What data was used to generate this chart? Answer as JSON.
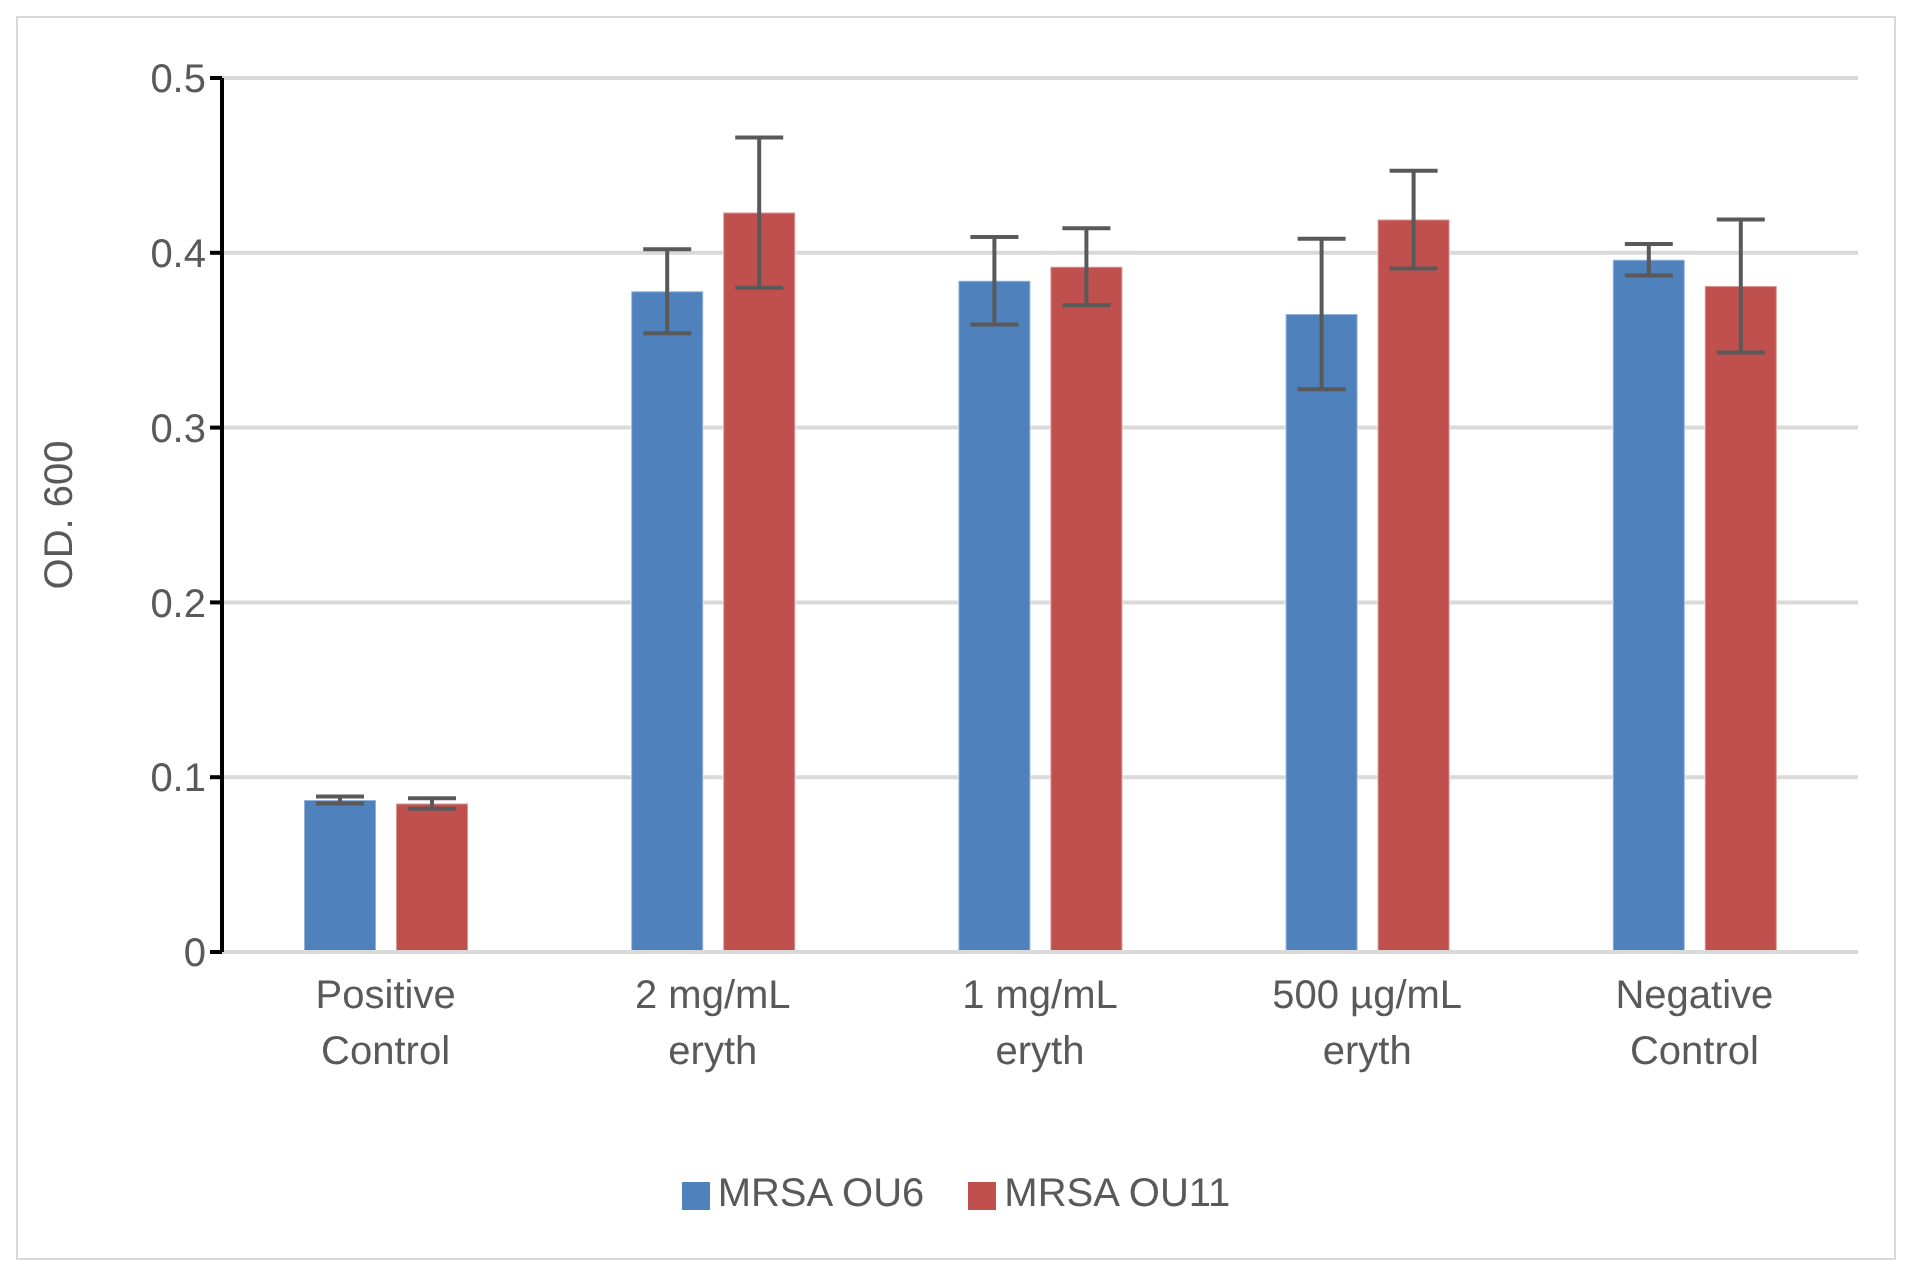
{
  "chart_data": {
    "type": "bar",
    "ylabel": "OD. 600",
    "categories": [
      "Positive Control",
      "2 mg/mL eryth",
      "1 mg/mL eryth",
      "500 µg/mL eryth",
      "Negative Control"
    ],
    "series": [
      {
        "name": "MRSA OU6",
        "color": "#4f81bd",
        "values": [
          0.087,
          0.378,
          0.384,
          0.365,
          0.396
        ],
        "errors": [
          0.002,
          0.024,
          0.025,
          0.043,
          0.009
        ]
      },
      {
        "name": "MRSA OU11",
        "color": "#c0504d",
        "values": [
          0.085,
          0.423,
          0.392,
          0.419,
          0.381
        ],
        "errors": [
          0.003,
          0.043,
          0.022,
          0.028,
          0.038
        ]
      }
    ],
    "ylim": [
      0,
      0.5
    ],
    "yticks": [
      0,
      0.1,
      0.2,
      0.3,
      0.4,
      0.5
    ],
    "grid": "y",
    "legend": "bottom"
  }
}
